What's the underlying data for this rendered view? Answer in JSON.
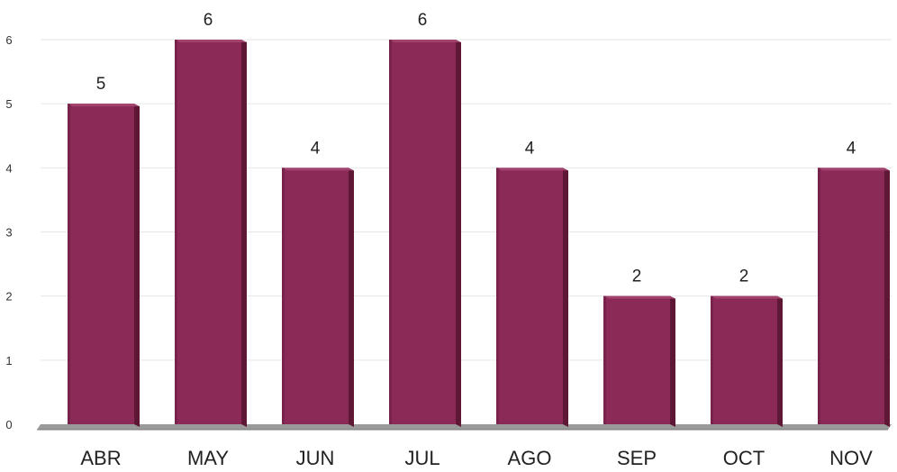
{
  "chart_data": {
    "type": "bar",
    "categories": [
      "ABR",
      "MAY",
      "JUN",
      "JUL",
      "AGO",
      "SEP",
      "OCT",
      "NOV"
    ],
    "values": [
      5,
      6,
      4,
      6,
      4,
      2,
      2,
      4
    ],
    "data_labels": [
      "5",
      "6",
      "4",
      "6",
      "4",
      "2",
      "2",
      "4"
    ],
    "y_ticks": [
      "0",
      "1",
      "2",
      "3",
      "4",
      "5",
      "6"
    ],
    "ylim": [
      0,
      6
    ],
    "grid": true,
    "legend": "none",
    "bar_color": "#8b2a57",
    "bar_side_color": "#5e1734",
    "bar_top_color": "#a54570",
    "floor_color": "#9a9a9a",
    "grid_color": "#e6e6e6"
  }
}
